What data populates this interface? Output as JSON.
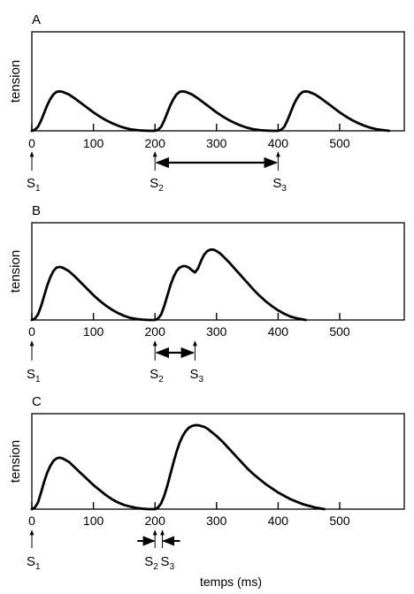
{
  "figure": {
    "xlabel": "temps (ms)"
  },
  "chart_data": [
    {
      "type": "line",
      "panel_label": "A",
      "ylabel": "tension",
      "xlim": [
        0,
        600
      ],
      "x_ticks": [
        0,
        100,
        200,
        300,
        400,
        500
      ],
      "x_tick_labels": [
        "0",
        "100",
        "200",
        "300",
        "400",
        "500"
      ],
      "series": [
        {
          "x": [
            0,
            5,
            10,
            15,
            20,
            25,
            30,
            35,
            40,
            45,
            50,
            60,
            70,
            80,
            90,
            100,
            110,
            120,
            130,
            140,
            150,
            160,
            170,
            180,
            190,
            200,
            205,
            210,
            215,
            220,
            225,
            230,
            235,
            240,
            245,
            250,
            260,
            270,
            280,
            290,
            300,
            310,
            320,
            330,
            340,
            350,
            360,
            370,
            380,
            390,
            400,
            405,
            410,
            415,
            420,
            425,
            430,
            435,
            440,
            445,
            450,
            460,
            470,
            480,
            490,
            500,
            510,
            520,
            530,
            540,
            550,
            560,
            570,
            580
          ],
          "y": [
            0.0,
            0.02,
            0.08,
            0.2,
            0.35,
            0.5,
            0.62,
            0.71,
            0.76,
            0.77,
            0.76,
            0.71,
            0.63,
            0.54,
            0.45,
            0.36,
            0.28,
            0.21,
            0.15,
            0.1,
            0.06,
            0.03,
            0.015,
            0.005,
            0.0,
            0.0,
            0.02,
            0.08,
            0.2,
            0.35,
            0.5,
            0.62,
            0.71,
            0.76,
            0.77,
            0.76,
            0.71,
            0.63,
            0.54,
            0.45,
            0.36,
            0.28,
            0.21,
            0.15,
            0.1,
            0.06,
            0.03,
            0.015,
            0.005,
            0.0,
            0.0,
            0.02,
            0.08,
            0.2,
            0.35,
            0.5,
            0.62,
            0.71,
            0.76,
            0.77,
            0.76,
            0.71,
            0.63,
            0.54,
            0.45,
            0.36,
            0.28,
            0.21,
            0.15,
            0.1,
            0.06,
            0.03,
            0.015,
            0.0
          ]
        }
      ],
      "stimuli": [
        {
          "letter": "S",
          "sub": "1",
          "x": 0
        },
        {
          "letter": "S",
          "sub": "2",
          "x": 200
        },
        {
          "letter": "S",
          "sub": "3",
          "x": 400
        }
      ],
      "interval": {
        "from": 200,
        "to": 400,
        "style": "double"
      }
    },
    {
      "type": "line",
      "panel_label": "B",
      "ylabel": "tension",
      "xlim": [
        0,
        600
      ],
      "x_ticks": [
        0,
        100,
        200,
        300,
        400,
        500
      ],
      "x_tick_labels": [
        "0",
        "100",
        "200",
        "300",
        "400",
        "500"
      ],
      "series": [
        {
          "x": [
            0,
            5,
            10,
            15,
            20,
            25,
            30,
            35,
            40,
            45,
            50,
            60,
            70,
            80,
            90,
            100,
            110,
            120,
            130,
            140,
            150,
            160,
            170,
            180,
            190,
            200,
            205,
            210,
            215,
            220,
            225,
            230,
            235,
            240,
            245,
            250,
            255,
            260,
            265,
            270,
            275,
            280,
            285,
            290,
            295,
            300,
            305,
            310,
            320,
            330,
            340,
            350,
            360,
            370,
            380,
            390,
            400,
            410,
            420,
            430,
            440,
            445
          ],
          "y": [
            0.0,
            0.02,
            0.08,
            0.2,
            0.35,
            0.5,
            0.62,
            0.71,
            0.76,
            0.77,
            0.76,
            0.71,
            0.63,
            0.54,
            0.45,
            0.36,
            0.28,
            0.21,
            0.15,
            0.1,
            0.06,
            0.03,
            0.015,
            0.005,
            0.0,
            0.0,
            0.02,
            0.08,
            0.2,
            0.35,
            0.5,
            0.62,
            0.71,
            0.76,
            0.78,
            0.78,
            0.76,
            0.72,
            0.69,
            0.75,
            0.86,
            0.95,
            1.0,
            1.02,
            1.02,
            1.0,
            0.97,
            0.93,
            0.84,
            0.74,
            0.64,
            0.54,
            0.44,
            0.35,
            0.27,
            0.2,
            0.14,
            0.09,
            0.05,
            0.025,
            0.008,
            0.0
          ]
        }
      ],
      "stimuli": [
        {
          "letter": "S",
          "sub": "1",
          "x": 0
        },
        {
          "letter": "S",
          "sub": "2",
          "x": 200
        },
        {
          "letter": "S",
          "sub": "3",
          "x": 265
        }
      ],
      "interval": {
        "from": 200,
        "to": 265,
        "style": "double"
      }
    },
    {
      "type": "line",
      "panel_label": "C",
      "ylabel": "tension",
      "xlim": [
        0,
        600
      ],
      "x_ticks": [
        0,
        100,
        200,
        300,
        400,
        500
      ],
      "x_tick_labels": [
        "0",
        "100",
        "200",
        "300",
        "400",
        "500"
      ],
      "series": [
        {
          "x": [
            0,
            5,
            10,
            15,
            20,
            25,
            30,
            35,
            40,
            45,
            50,
            60,
            70,
            80,
            90,
            100,
            110,
            120,
            130,
            140,
            150,
            160,
            170,
            180,
            190,
            200,
            205,
            210,
            215,
            220,
            225,
            230,
            235,
            240,
            245,
            250,
            255,
            260,
            265,
            270,
            275,
            280,
            285,
            290,
            300,
            310,
            320,
            330,
            340,
            350,
            360,
            370,
            380,
            390,
            400,
            410,
            420,
            430,
            440,
            450,
            460,
            470,
            475
          ],
          "y": [
            0.0,
            0.02,
            0.08,
            0.2,
            0.33,
            0.44,
            0.52,
            0.58,
            0.61,
            0.62,
            0.61,
            0.57,
            0.5,
            0.43,
            0.36,
            0.29,
            0.23,
            0.17,
            0.12,
            0.08,
            0.05,
            0.03,
            0.015,
            0.005,
            0.0,
            0.0,
            0.02,
            0.07,
            0.16,
            0.28,
            0.42,
            0.56,
            0.69,
            0.8,
            0.88,
            0.94,
            0.98,
            1.0,
            1.01,
            1.01,
            1.0,
            0.99,
            0.97,
            0.94,
            0.88,
            0.81,
            0.73,
            0.65,
            0.57,
            0.49,
            0.42,
            0.36,
            0.3,
            0.25,
            0.2,
            0.16,
            0.12,
            0.09,
            0.06,
            0.04,
            0.02,
            0.007,
            0.0
          ]
        }
      ],
      "stimuli": [
        {
          "letter": "S",
          "sub": "2",
          "x": 200
        },
        {
          "letter": "S",
          "sub": "1",
          "x": 0
        },
        {
          "letter": "S",
          "sub": "3",
          "x": 212
        }
      ],
      "interval": {
        "from": 200,
        "to": 212,
        "style": "converging"
      }
    }
  ]
}
